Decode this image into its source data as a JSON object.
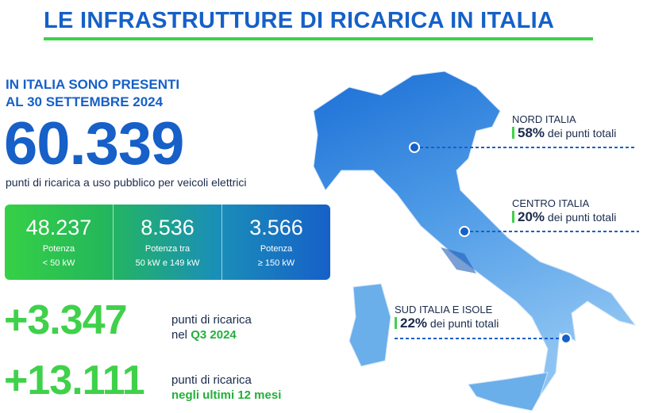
{
  "title": "LE INFRASTRUTTURE DI RICARICA IN ITALIA",
  "intro": [
    "IN ITALIA SONO PRESENTI",
    "AL 30 SETTEMBRE 2024"
  ],
  "total": "60.339",
  "total_caption": "punti di ricarica a uso pubblico per veicoli elettrici",
  "power_boxes": [
    {
      "value": "48.237",
      "label": [
        "Potenza",
        "< 50 kW"
      ]
    },
    {
      "value": "8.536",
      "label": [
        "Potenza tra",
        "50 kW e 149 kW"
      ]
    },
    {
      "value": "3.566",
      "label": [
        "Potenza",
        "≥ 150 kW"
      ]
    }
  ],
  "growth": [
    {
      "value": "+3.347",
      "text": "punti di ricarica",
      "period_prefix": "nel",
      "period": "Q3 2024"
    },
    {
      "value": "+13.111",
      "text": "punti di ricarica",
      "period": "negli ultimi 12 mesi"
    }
  ],
  "regions": [
    {
      "name": "NORD ITALIA",
      "share": "58%",
      "share_text": "dei punti totali"
    },
    {
      "name": "CENTRO ITALIA",
      "share": "20%",
      "share_text": "dei punti totali"
    },
    {
      "name": "SUD ITALIA E ISOLE",
      "share": "22%",
      "share_text": "dei punti totali"
    }
  ]
}
